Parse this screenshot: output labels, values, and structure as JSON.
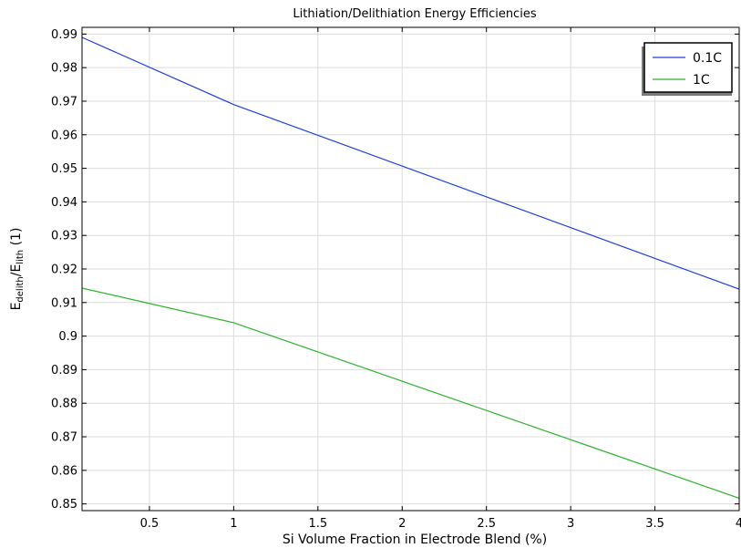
{
  "chart_data": {
    "type": "line",
    "title": "Lithiation/Delithiation Energy Efficiencies",
    "xlabel": "Si Volume Fraction in Electrode Blend (%)",
    "ylabel": {
      "main": "E",
      "sub1": "delith",
      "sep": "/E",
      "sub2": "lith",
      "tail": " (1)"
    },
    "xlim": [
      0.1,
      4
    ],
    "ylim": [
      0.848,
      0.992
    ],
    "x_ticks": [
      0.5,
      1,
      1.5,
      2,
      2.5,
      3,
      3.5,
      4
    ],
    "x_tick_labels": [
      "0.5",
      "1",
      "1.5",
      "2",
      "2.5",
      "3",
      "3.5",
      "4"
    ],
    "y_ticks": [
      0.85,
      0.86,
      0.87,
      0.88,
      0.89,
      0.9,
      0.91,
      0.92,
      0.93,
      0.94,
      0.95,
      0.96,
      0.97,
      0.98,
      0.99
    ],
    "y_tick_labels": [
      "0.85",
      "0.86",
      "0.87",
      "0.88",
      "0.89",
      "0.9",
      "0.91",
      "0.92",
      "0.93",
      "0.94",
      "0.95",
      "0.96",
      "0.97",
      "0.98",
      "0.99"
    ],
    "grid": true,
    "legend_position": "top-right",
    "series": [
      {
        "name": "0.1C",
        "color": "#1f3ee0",
        "x": [
          0.1,
          1,
          4
        ],
        "y": [
          0.989,
          0.969,
          0.914
        ]
      },
      {
        "name": "1C",
        "color": "#2ab52a",
        "x": [
          0.1,
          1,
          4
        ],
        "y": [
          0.9143,
          0.904,
          0.8517
        ]
      }
    ]
  }
}
